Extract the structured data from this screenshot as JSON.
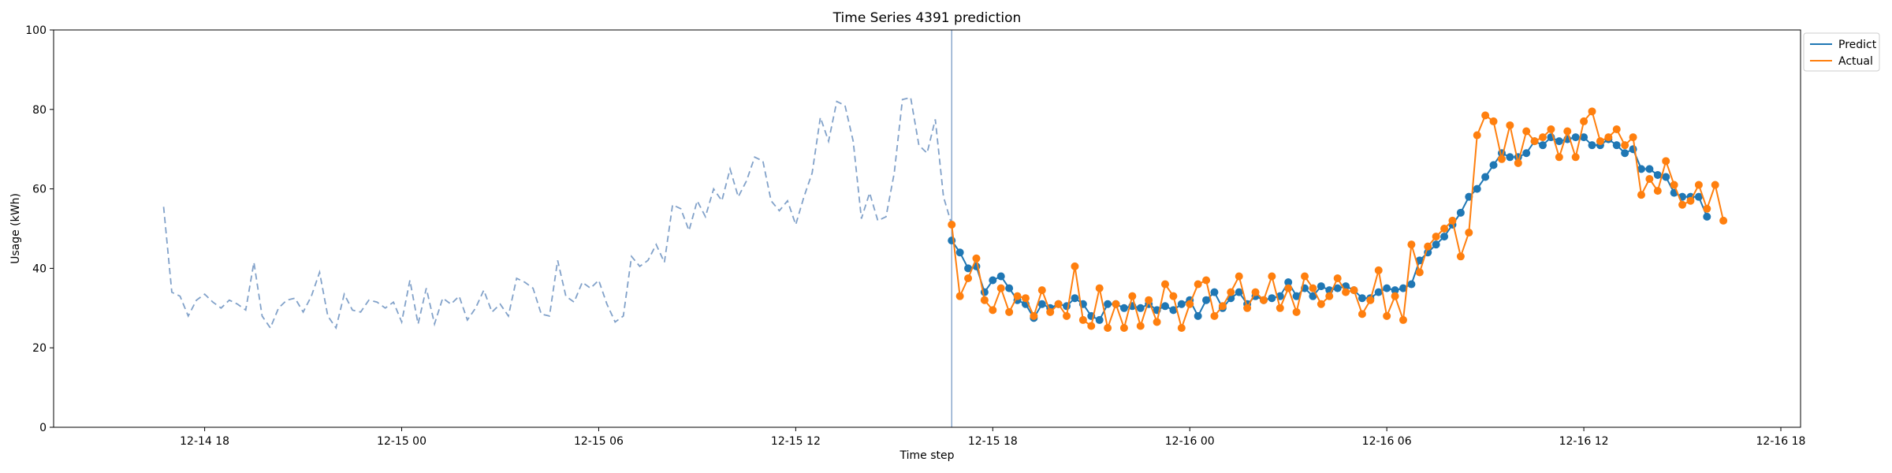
{
  "chart_data": {
    "type": "line",
    "title": "Time Series 4391 prediction",
    "xlabel": "Time step",
    "ylabel": "Usage (kWh)",
    "ylim": [
      0,
      100
    ],
    "xlim": [
      "2024-12-14 13:24",
      "2024-12-16 18:36"
    ],
    "grid": false,
    "legend_position": "upper-right-outside",
    "x_ticks": [
      {
        "t": "2024-12-14 18:00",
        "label": "12-14 18"
      },
      {
        "t": "2024-12-15 00:00",
        "label": "12-15 00"
      },
      {
        "t": "2024-12-15 06:00",
        "label": "12-15 06"
      },
      {
        "t": "2024-12-15 12:00",
        "label": "12-15 12"
      },
      {
        "t": "2024-12-15 18:00",
        "label": "12-15 18"
      },
      {
        "t": "2024-12-16 00:00",
        "label": "12-16 00"
      },
      {
        "t": "2024-12-16 06:00",
        "label": "12-16 06"
      },
      {
        "t": "2024-12-16 12:00",
        "label": "12-16 12"
      },
      {
        "t": "2024-12-16 18:00",
        "label": "12-16 18"
      }
    ],
    "y_ticks": [
      0,
      20,
      40,
      60,
      80,
      100
    ],
    "forecast_start": "2024-12-15 16:45",
    "time_step_minutes": 15,
    "history": {
      "start": "2024-12-14 16:45",
      "color": "#7a9cc6",
      "style": "dashed",
      "values": [
        55.5,
        34,
        33,
        28,
        32,
        33.5,
        31.5,
        30,
        32,
        31,
        29.5,
        41.5,
        28,
        25,
        30,
        32,
        32.5,
        29,
        33,
        39,
        28,
        25,
        33.5,
        29.5,
        29,
        32,
        31.5,
        30,
        31.5,
        26.5,
        37,
        26,
        35,
        26,
        32.5,
        31,
        33,
        27,
        30,
        34.5,
        29,
        31,
        28,
        37.5,
        36.5,
        35,
        28.5,
        28,
        42,
        33,
        31.5,
        36.5,
        35,
        37,
        31,
        26.5,
        28,
        43,
        40.5,
        42,
        46,
        41.5,
        56,
        55,
        49.5,
        57,
        53,
        60,
        57,
        65,
        58,
        62,
        68,
        67,
        57,
        54.5,
        57,
        51,
        58,
        64,
        78,
        72,
        82,
        81,
        72,
        52.5,
        59,
        52,
        53,
        64,
        82.5,
        83,
        71,
        69,
        77.5,
        58,
        51
      ]
    },
    "series": [
      {
        "name": "Predict",
        "color": "#1f77b4",
        "start": "2024-12-15 16:45",
        "values": [
          47,
          44,
          40,
          40.5,
          34,
          37,
          38,
          35,
          32,
          31,
          27.5,
          31,
          30,
          31,
          30.5,
          32.5,
          31,
          28,
          27,
          31,
          31,
          30,
          30.5,
          30,
          31,
          29.5,
          30.5,
          29.5,
          31,
          32,
          28,
          32,
          34,
          30,
          32.5,
          34,
          31,
          33,
          32,
          32.5,
          33,
          36.5,
          33,
          35,
          33,
          35.5,
          34.5,
          35,
          35.5,
          34.5,
          32.5,
          32.5,
          34,
          35,
          34.5,
          35,
          36,
          42,
          44,
          46,
          48,
          51,
          54,
          58,
          60,
          63,
          66,
          69,
          68,
          68,
          69,
          72,
          71,
          73,
          72,
          72.5,
          73,
          73,
          71,
          71,
          72.5,
          71,
          69,
          70,
          65,
          65,
          63.5,
          63,
          59,
          58,
          58,
          58,
          53
        ]
      },
      {
        "name": "Actual",
        "color": "#ff7f0e",
        "start": "2024-12-15 16:45",
        "values": [
          51,
          33,
          37.5,
          42.5,
          32,
          29.5,
          35,
          29,
          33,
          32.5,
          28,
          34.5,
          29,
          31,
          28,
          40.5,
          27,
          25.5,
          35,
          25,
          31,
          25,
          33,
          25.5,
          32,
          26.5,
          36,
          33,
          25,
          31,
          36,
          37,
          28,
          30.5,
          34,
          38,
          30,
          34,
          32,
          38,
          30,
          35,
          29,
          38,
          35,
          31,
          33,
          37.5,
          34,
          34.5,
          28.5,
          32,
          39.5,
          28,
          33,
          27,
          46,
          39,
          45.5,
          48,
          50,
          52,
          43,
          49,
          73.5,
          78.5,
          77,
          67.5,
          76,
          66.5,
          74.5,
          72,
          73,
          75,
          68,
          74.5,
          68,
          77,
          79.5,
          72,
          73,
          75,
          71,
          73,
          58.5,
          62.5,
          59.5,
          67,
          61,
          56,
          57,
          61,
          55,
          61,
          52
        ]
      }
    ]
  }
}
